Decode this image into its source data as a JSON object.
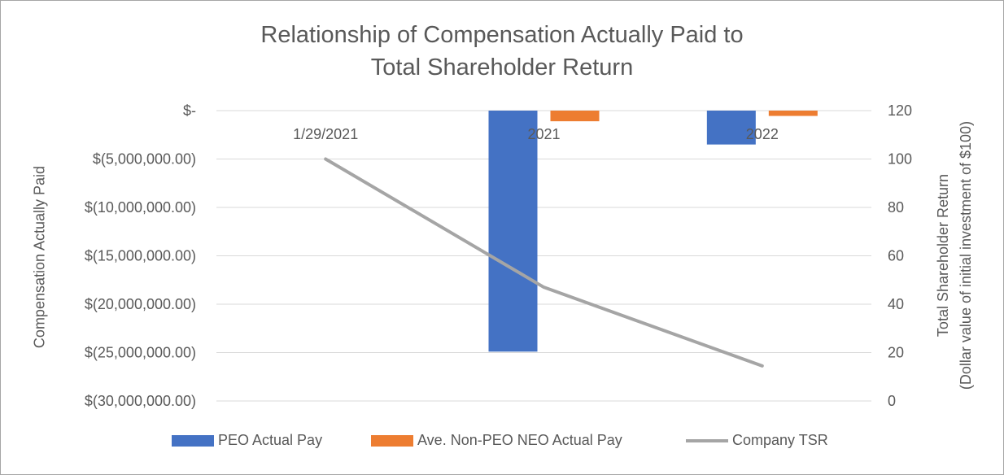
{
  "chart_data": {
    "type": "bar",
    "title_lines": [
      "Relationship of Compensation Actually Paid to",
      "Total Shareholder Return"
    ],
    "categories": [
      "1/29/2021",
      "2021",
      "2022"
    ],
    "y_left": {
      "label": "Compensation Actually Paid",
      "ylim": [
        -30000000,
        0
      ],
      "ticks": [
        0,
        -5000000,
        -10000000,
        -15000000,
        -20000000,
        -25000000,
        -30000000
      ],
      "tick_labels": [
        "$-",
        "$(5,000,000.00)",
        "$(10,000,000.00)",
        "$(15,000,000.00)",
        "$(20,000,000.00)",
        "$(25,000,000.00)",
        "$(30,000,000.00)"
      ]
    },
    "y_right": {
      "label_lines": [
        "Total Shareholder Return",
        "(Dollar value of initial investment of $100)"
      ],
      "ylim": [
        0,
        120
      ],
      "ticks": [
        0,
        20,
        40,
        60,
        80,
        100,
        120
      ],
      "tick_labels": [
        "0",
        "20",
        "40",
        "60",
        "80",
        "100",
        "120"
      ]
    },
    "series": [
      {
        "name": "PEO Actual Pay",
        "kind": "bar",
        "axis": "left",
        "color": "#4472c4",
        "values": [
          null,
          -24900000,
          -3500000
        ]
      },
      {
        "name": "Ave. Non-PEO NEO Actual Pay",
        "kind": "bar",
        "axis": "left",
        "color": "#ed7d31",
        "values": [
          null,
          -1100000,
          -550000
        ]
      },
      {
        "name": "Company TSR",
        "kind": "line",
        "axis": "right",
        "color": "#a5a5a5",
        "values": [
          100,
          47,
          14.5
        ]
      }
    ],
    "grid": true,
    "legend_position": "bottom"
  }
}
